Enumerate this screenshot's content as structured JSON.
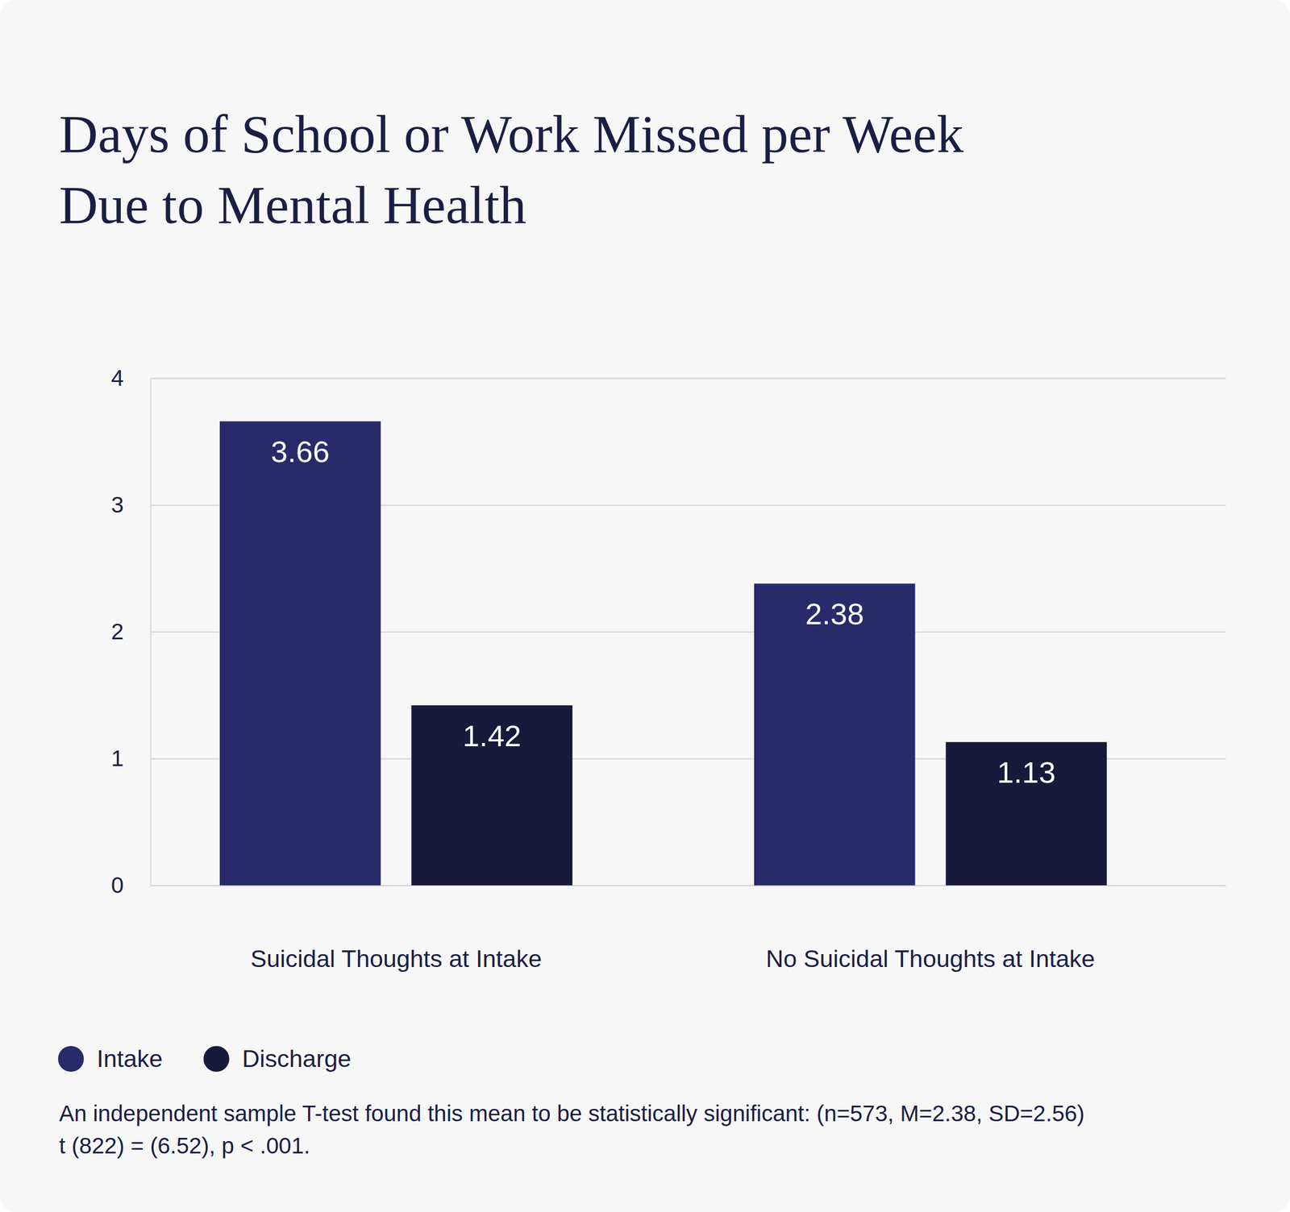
{
  "chart_data": {
    "type": "bar",
    "title": [
      "Days of School or Work Missed per Week",
      "Due to Mental Health"
    ],
    "categories": [
      "Suicidal Thoughts at Intake",
      "No Suicidal Thoughts at Intake"
    ],
    "series": [
      {
        "name": "Intake",
        "color": "#272b69",
        "values": [
          3.66,
          2.38
        ]
      },
      {
        "name": "Discharge",
        "color": "#181a3b",
        "values": [
          1.42,
          1.13
        ]
      }
    ],
    "ylim": [
      0,
      4
    ],
    "yticks": [
      0,
      1,
      2,
      3,
      4
    ],
    "grid": true,
    "data_labels": true,
    "legend": "bottom-left",
    "annotations": [
      "An independent sample T-test found this mean to be statistically significant: (n=573, M=2.38, SD=2.56)",
      "t (822) = (6.52), p < .001."
    ]
  }
}
